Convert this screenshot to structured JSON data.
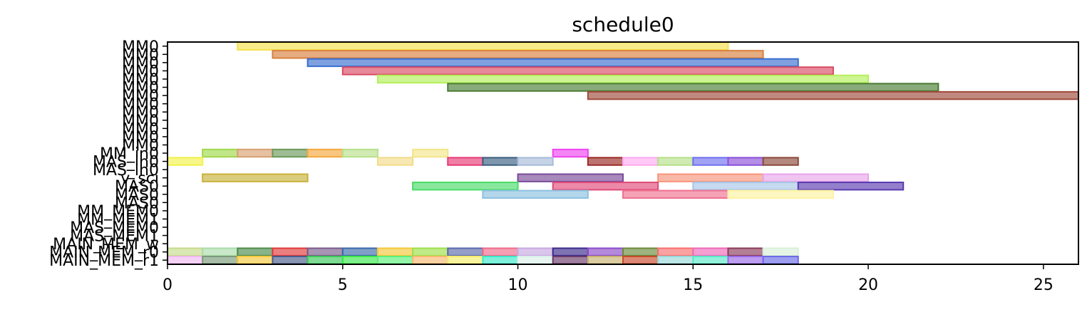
{
  "chart_data": {
    "type": "gantt",
    "title": "schedule0",
    "xlim": [
      0,
      26
    ],
    "xticks": [
      0,
      5,
      10,
      15,
      20,
      25
    ],
    "grid": false,
    "rows": [
      "MM0",
      "MM0",
      "MM0",
      "MM0",
      "MM0",
      "MM0",
      "MM0",
      "MM0",
      "MM0",
      "MM0",
      "MM0",
      "MM0",
      "MM0",
      "MM_in0",
      "MAS_in0",
      "MAS_in0",
      "v_sci",
      "MAS0",
      "MAS0",
      "MAS0",
      "MM_MEM0",
      "MM_MEM1",
      "MAS_MEM0",
      "MAS_MEM1",
      "MAIN_MEM_w",
      "MAIN_MEM_r0",
      "MAIN_MEM_r1"
    ],
    "tasks": [
      {
        "row": 0,
        "start": 2,
        "end": 16,
        "color": "#f5e04c"
      },
      {
        "row": 1,
        "start": 3,
        "end": 17,
        "color": "#d9803e"
      },
      {
        "row": 2,
        "start": 4,
        "end": 18,
        "color": "#3a6fd0"
      },
      {
        "row": 3,
        "start": 5,
        "end": 19,
        "color": "#d94a64"
      },
      {
        "row": 4,
        "start": 6,
        "end": 20,
        "color": "#b4f05a"
      },
      {
        "row": 5,
        "start": 8,
        "end": 22,
        "color": "#4a7d32"
      },
      {
        "row": 6,
        "start": 12,
        "end": 26,
        "color": "#9e4a3c"
      },
      {
        "row": 13,
        "start": 1,
        "end": 2,
        "color": "#9fd84a"
      },
      {
        "row": 13,
        "start": 2,
        "end": 3,
        "color": "#d8a070"
      },
      {
        "row": 13,
        "start": 3,
        "end": 4,
        "color": "#6a9a5a"
      },
      {
        "row": 13,
        "start": 4,
        "end": 5,
        "color": "#f5a83c"
      },
      {
        "row": 13,
        "start": 5,
        "end": 6,
        "color": "#b8e08a"
      },
      {
        "row": 13,
        "start": 7,
        "end": 8,
        "color": "#f2e68a"
      },
      {
        "row": 13,
        "start": 11,
        "end": 12,
        "color": "#ee44f0"
      },
      {
        "row": 14,
        "start": 0,
        "end": 1,
        "color": "#f2f24a"
      },
      {
        "row": 14,
        "start": 6,
        "end": 7,
        "color": "#f2dc8a"
      },
      {
        "row": 14,
        "start": 8,
        "end": 9,
        "color": "#e83a74"
      },
      {
        "row": 14,
        "start": 9,
        "end": 10,
        "color": "#3a5f80"
      },
      {
        "row": 14,
        "start": 10,
        "end": 11,
        "color": "#a8bcd8"
      },
      {
        "row": 14,
        "start": 12,
        "end": 13,
        "color": "#9a2a24"
      },
      {
        "row": 14,
        "start": 13,
        "end": 14,
        "color": "#ffaaf0"
      },
      {
        "row": 14,
        "start": 14,
        "end": 15,
        "color": "#b6e08a"
      },
      {
        "row": 14,
        "start": 15,
        "end": 16,
        "color": "#7070f0"
      },
      {
        "row": 14,
        "start": 16,
        "end": 17,
        "color": "#8a50d8"
      },
      {
        "row": 14,
        "start": 17,
        "end": 18,
        "color": "#8a4a3a"
      },
      {
        "row": 16,
        "start": 1,
        "end": 4,
        "color": "#c8b23a"
      },
      {
        "row": 16,
        "start": 10,
        "end": 13,
        "color": "#7a4a98"
      },
      {
        "row": 16,
        "start": 14,
        "end": 17,
        "color": "#f8947a"
      },
      {
        "row": 16,
        "start": 17,
        "end": 20,
        "color": "#e8a6ea"
      },
      {
        "row": 17,
        "start": 7,
        "end": 10,
        "color": "#4adc6a"
      },
      {
        "row": 17,
        "start": 11,
        "end": 14,
        "color": "#e04a7a"
      },
      {
        "row": 17,
        "start": 15,
        "end": 18,
        "color": "#a8c6e8"
      },
      {
        "row": 17,
        "start": 18,
        "end": 21,
        "color": "#5a3ab0"
      },
      {
        "row": 18,
        "start": 9,
        "end": 12,
        "color": "#8cc0e0"
      },
      {
        "row": 18,
        "start": 13,
        "end": 16,
        "color": "#f07090"
      },
      {
        "row": 18,
        "start": 16,
        "end": 19,
        "color": "#fff2a0"
      },
      {
        "row": 25,
        "start": 0,
        "end": 1,
        "color": "#c6dc8a"
      },
      {
        "row": 25,
        "start": 1,
        "end": 2,
        "color": "#aadcaa"
      },
      {
        "row": 25,
        "start": 2,
        "end": 3,
        "color": "#4a8a4a"
      },
      {
        "row": 25,
        "start": 3,
        "end": 4,
        "color": "#e03a3a"
      },
      {
        "row": 25,
        "start": 4,
        "end": 5,
        "color": "#7a5a8a"
      },
      {
        "row": 25,
        "start": 5,
        "end": 6,
        "color": "#3a6aaa"
      },
      {
        "row": 25,
        "start": 6,
        "end": 7,
        "color": "#f5c83a"
      },
      {
        "row": 25,
        "start": 7,
        "end": 8,
        "color": "#9ee04a"
      },
      {
        "row": 25,
        "start": 8,
        "end": 9,
        "color": "#5a6aaa"
      },
      {
        "row": 25,
        "start": 9,
        "end": 10,
        "color": "#f06a8a"
      },
      {
        "row": 25,
        "start": 10,
        "end": 11,
        "color": "#c8a8e0"
      },
      {
        "row": 25,
        "start": 11,
        "end": 12,
        "color": "#3a2a8a"
      },
      {
        "row": 25,
        "start": 12,
        "end": 13,
        "color": "#8a4ac8"
      },
      {
        "row": 25,
        "start": 13,
        "end": 14,
        "color": "#6a8a3a"
      },
      {
        "row": 25,
        "start": 14,
        "end": 15,
        "color": "#f87070"
      },
      {
        "row": 25,
        "start": 15,
        "end": 16,
        "color": "#ee6aba"
      },
      {
        "row": 25,
        "start": 16,
        "end": 17,
        "color": "#8a3a5a"
      },
      {
        "row": 25,
        "start": 17,
        "end": 18,
        "color": "#d8f0d8"
      },
      {
        "row": 26,
        "start": 0,
        "end": 1,
        "color": "#f0b8f0"
      },
      {
        "row": 26,
        "start": 1,
        "end": 2,
        "color": "#7a9a7a"
      },
      {
        "row": 26,
        "start": 2,
        "end": 3,
        "color": "#f5c83a"
      },
      {
        "row": 26,
        "start": 3,
        "end": 4,
        "color": "#4a5a8a"
      },
      {
        "row": 26,
        "start": 4,
        "end": 5,
        "color": "#3ac85a"
      },
      {
        "row": 26,
        "start": 5,
        "end": 6,
        "color": "#3ae84a"
      },
      {
        "row": 26,
        "start": 6,
        "end": 7,
        "color": "#5af07a"
      },
      {
        "row": 26,
        "start": 7,
        "end": 8,
        "color": "#f8b870"
      },
      {
        "row": 26,
        "start": 8,
        "end": 9,
        "color": "#f5ec6a"
      },
      {
        "row": 26,
        "start": 9,
        "end": 10,
        "color": "#3ae8c8"
      },
      {
        "row": 26,
        "start": 10,
        "end": 11,
        "color": "#d8f0e8"
      },
      {
        "row": 26,
        "start": 11,
        "end": 12,
        "color": "#6a3a6a"
      },
      {
        "row": 26,
        "start": 12,
        "end": 13,
        "color": "#c8b070"
      },
      {
        "row": 26,
        "start": 13,
        "end": 14,
        "color": "#c84a2a"
      },
      {
        "row": 26,
        "start": 14,
        "end": 15,
        "color": "#9ad8d8"
      },
      {
        "row": 26,
        "start": 15,
        "end": 16,
        "color": "#5ae8c8"
      },
      {
        "row": 26,
        "start": 16,
        "end": 17,
        "color": "#9a6ae8"
      },
      {
        "row": 26,
        "start": 17,
        "end": 18,
        "color": "#6a6ae8"
      }
    ]
  }
}
